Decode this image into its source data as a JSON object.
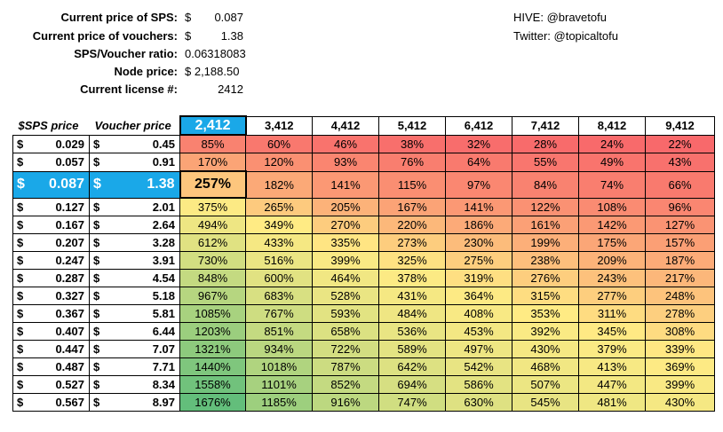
{
  "info": {
    "sps_label": "Current price of SPS:",
    "sps_dollar": "$",
    "sps_value": "0.087",
    "vouchers_label": "Current price of vouchers:",
    "vouchers_dollar": "$",
    "vouchers_value": "1.38",
    "ratio_label": "SPS/Voucher ratio:",
    "ratio_value": "0.06318083",
    "node_label": "Node price:",
    "node_value": "$ 2,188.50",
    "license_label": "Current license #:",
    "license_value": "2412"
  },
  "social": {
    "hive": "HIVE: @bravetofu",
    "twitter": "Twitter: @topicaltofu"
  },
  "table": {
    "header_sps": "$SPS price",
    "header_voucher": "Voucher price",
    "licenses": [
      "2,412",
      "3,412",
      "4,412",
      "5,412",
      "6,412",
      "7,412",
      "8,412",
      "9,412"
    ],
    "dollar": "$",
    "rows": [
      {
        "sps": "0.029",
        "voucher": "0.45",
        "pct": [
          "85%",
          "60%",
          "46%",
          "38%",
          "32%",
          "28%",
          "24%",
          "22%"
        ]
      },
      {
        "sps": "0.057",
        "voucher": "0.91",
        "pct": [
          "170%",
          "120%",
          "93%",
          "76%",
          "64%",
          "55%",
          "49%",
          "43%"
        ]
      },
      {
        "sps": "0.087",
        "voucher": "1.38",
        "pct": [
          "257%",
          "182%",
          "141%",
          "115%",
          "97%",
          "84%",
          "74%",
          "66%"
        ]
      },
      {
        "sps": "0.127",
        "voucher": "2.01",
        "pct": [
          "375%",
          "265%",
          "205%",
          "167%",
          "141%",
          "122%",
          "108%",
          "96%"
        ]
      },
      {
        "sps": "0.167",
        "voucher": "2.64",
        "pct": [
          "494%",
          "349%",
          "270%",
          "220%",
          "186%",
          "161%",
          "142%",
          "127%"
        ]
      },
      {
        "sps": "0.207",
        "voucher": "3.28",
        "pct": [
          "612%",
          "433%",
          "335%",
          "273%",
          "230%",
          "199%",
          "175%",
          "157%"
        ]
      },
      {
        "sps": "0.247",
        "voucher": "3.91",
        "pct": [
          "730%",
          "516%",
          "399%",
          "325%",
          "275%",
          "238%",
          "209%",
          "187%"
        ]
      },
      {
        "sps": "0.287",
        "voucher": "4.54",
        "pct": [
          "848%",
          "600%",
          "464%",
          "378%",
          "319%",
          "276%",
          "243%",
          "217%"
        ]
      },
      {
        "sps": "0.327",
        "voucher": "5.18",
        "pct": [
          "967%",
          "683%",
          "528%",
          "431%",
          "364%",
          "315%",
          "277%",
          "248%"
        ]
      },
      {
        "sps": "0.367",
        "voucher": "5.81",
        "pct": [
          "1085%",
          "767%",
          "593%",
          "484%",
          "408%",
          "353%",
          "311%",
          "278%"
        ]
      },
      {
        "sps": "0.407",
        "voucher": "6.44",
        "pct": [
          "1203%",
          "851%",
          "658%",
          "536%",
          "453%",
          "392%",
          "345%",
          "308%"
        ]
      },
      {
        "sps": "0.447",
        "voucher": "7.07",
        "pct": [
          "1321%",
          "934%",
          "722%",
          "589%",
          "497%",
          "430%",
          "379%",
          "339%"
        ]
      },
      {
        "sps": "0.487",
        "voucher": "7.71",
        "pct": [
          "1440%",
          "1018%",
          "787%",
          "642%",
          "542%",
          "468%",
          "413%",
          "369%"
        ]
      },
      {
        "sps": "0.527",
        "voucher": "8.34",
        "pct": [
          "1558%",
          "1101%",
          "852%",
          "694%",
          "586%",
          "507%",
          "447%",
          "399%"
        ]
      },
      {
        "sps": "0.567",
        "voucher": "8.97",
        "pct": [
          "1676%",
          "1185%",
          "916%",
          "747%",
          "630%",
          "545%",
          "481%",
          "430%"
        ]
      }
    ]
  },
  "colors": {
    "highlight": "#1aa8e8",
    "scale_low": "#f8696b",
    "scale_mid": "#ffeb84",
    "scale_high": "#63be7b"
  }
}
